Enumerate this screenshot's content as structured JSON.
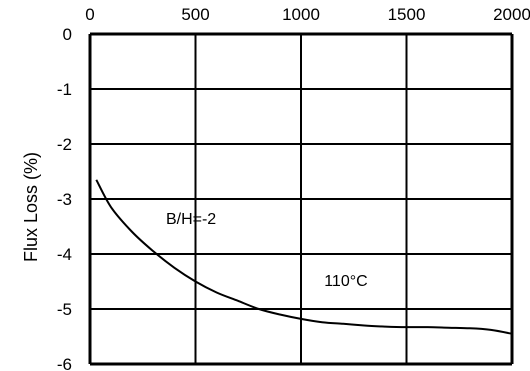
{
  "chart_data": {
    "type": "line",
    "title": "",
    "xlabel": "",
    "ylabel": "Flux Loss (%)",
    "xlim": [
      0,
      2000
    ],
    "ylim": [
      -6,
      0
    ],
    "x_ticks": [
      "0",
      "500",
      "1000",
      "1500",
      "2000"
    ],
    "y_ticks": [
      "0",
      "-1",
      "-2",
      "-3",
      "-4",
      "-5",
      "-6"
    ],
    "x_axis_position": "top",
    "grid": true,
    "series": [
      {
        "x": [
          30,
          100,
          200,
          300,
          400,
          500,
          600,
          700,
          800,
          900,
          1000,
          1100,
          1200,
          1300,
          1400,
          1500,
          1600,
          1700,
          1800,
          1900,
          2000
        ],
        "y": [
          -2.65,
          -3.15,
          -3.6,
          -3.95,
          -4.25,
          -4.5,
          -4.7,
          -4.85,
          -5.0,
          -5.1,
          -5.18,
          -5.24,
          -5.27,
          -5.3,
          -5.32,
          -5.33,
          -5.33,
          -5.34,
          -5.35,
          -5.38,
          -5.45
        ]
      }
    ],
    "annotations": [
      "B/H=-2",
      "110°C"
    ]
  }
}
